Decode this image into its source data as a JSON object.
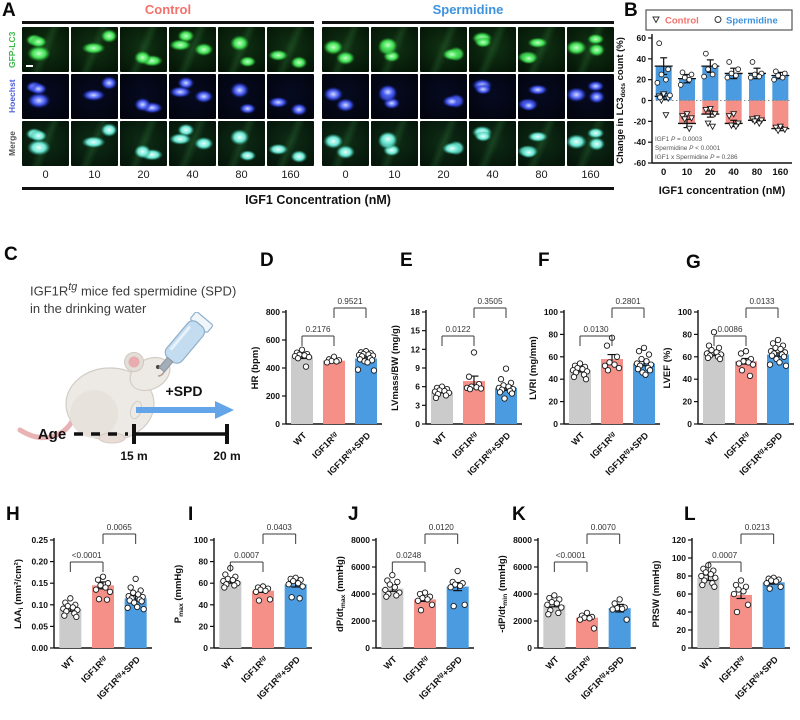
{
  "panel_a": {
    "letter": "A",
    "groups": [
      {
        "label": "Control",
        "color": "#F2726B"
      },
      {
        "label": "Spermidine",
        "color": "#3E93DE"
      }
    ],
    "rows": [
      {
        "label": "GFP-LC3",
        "color": "#3CB54A"
      },
      {
        "label": "Hoechst",
        "color": "#4C5FD6"
      },
      {
        "label": "Merge",
        "color": "#555555"
      }
    ],
    "concentrations": [
      "0",
      "10",
      "20",
      "40",
      "80",
      "160"
    ],
    "xlabel": "IGF1 Concentration (nM)"
  },
  "panel_c": {
    "letter": "C",
    "description_lines": [
      "IGF1R^{tg} mice fed spermidine (SPD)",
      "in the drinking water"
    ],
    "age_label": "Age",
    "arrow_label": "+SPD",
    "t_start": "15 m",
    "t_end": "20 m"
  },
  "chart_data": [
    {
      "panel": "B",
      "type": "grouped-bar",
      "ylabel": "Change in LC3_{dots} count (%)",
      "xlabel": "IGF1 concentration (nM)",
      "ylim": [
        -60,
        60
      ],
      "yticks": [
        -60,
        -40,
        -20,
        0,
        20,
        40,
        60
      ],
      "ytick_labels": [
        "-60",
        "-40",
        "-20",
        "0",
        "20",
        "40",
        "60"
      ],
      "categories": [
        "0",
        "10",
        "20",
        "40",
        "80",
        "160"
      ],
      "legend": [
        {
          "label": "Control",
          "marker": "triangle-down",
          "text_color": "#F2726B"
        },
        {
          "label": "Spermidine",
          "marker": "circle",
          "text_color": "#3E93DE"
        }
      ],
      "series": [
        {
          "name": "Control",
          "marker": "triangle-down",
          "color": "#F59089",
          "values": [
            4,
            -22,
            -13,
            -22,
            -19,
            -27
          ],
          "errors": [
            3,
            4,
            3,
            3,
            2,
            2
          ],
          "points": [
            [
              6,
              4,
              2,
              0,
              -14
            ],
            [
              -13,
              -15,
              -17,
              -18,
              -27
            ],
            [
              -8,
              -9,
              -13,
              -22,
              -25
            ],
            [
              -13,
              -15,
              -22,
              -24,
              -25
            ],
            [
              -17,
              -18,
              -19,
              -20,
              -22
            ],
            [
              -25,
              -26,
              -28,
              -29
            ]
          ]
        },
        {
          "name": "Spermidine",
          "marker": "circle",
          "color": "#4A9BE0",
          "values": [
            33,
            21,
            33,
            26,
            26,
            24
          ],
          "errors": [
            8,
            4,
            6,
            5,
            5,
            3
          ],
          "points": [
            [
              55,
              30,
              25,
              20,
              17,
              5,
              3
            ],
            [
              27,
              25,
              22,
              20,
              15
            ],
            [
              45,
              33,
              30,
              25,
              23
            ],
            [
              37,
              30,
              26,
              24,
              22
            ],
            [
              37,
              26,
              25,
              23,
              22
            ],
            [
              28,
              26,
              24,
              22,
              20
            ]
          ]
        }
      ],
      "stats": [
        "IGF1 *P* = 0.0003",
        "Spermidine *P* < 0.0001",
        "IGF1 x Spermidine *P* = 0.286"
      ]
    },
    {
      "panel": "D",
      "type": "bar",
      "ylabel": "HR (bpm)",
      "ylim": [
        0,
        800
      ],
      "yticks": [
        0,
        200,
        400,
        600,
        800
      ],
      "ytick_labels": [
        "0",
        "200",
        "400",
        "600",
        "800"
      ],
      "categories": [
        "WT",
        "IGF1R^{tg}",
        "IGF1R^{tg}+SPD"
      ],
      "bar_colors": [
        "#CBCBCB",
        "#F59089",
        "#4A9BE0"
      ],
      "values": [
        482,
        452,
        468
      ],
      "errors": [
        14,
        9,
        10
      ],
      "points": [
        [
          530,
          510,
          500,
          495,
          490,
          485,
          478,
          470,
          410
        ],
        [
          480,
          462,
          455,
          450,
          447,
          440
        ],
        [
          520,
          512,
          505,
          500,
          496,
          492,
          488,
          484,
          470,
          462,
          455,
          448,
          440,
          388,
          382
        ]
      ],
      "comparisons": [
        {
          "a": 0,
          "b": 1,
          "p": "0.2176"
        },
        {
          "a": 1,
          "b": 2,
          "p": "0.9521"
        }
      ]
    },
    {
      "panel": "E",
      "type": "bar",
      "ylabel": "LVmass/BW (mg/g)",
      "ylim": [
        0,
        18
      ],
      "yticks": [
        0,
        3,
        6,
        9,
        12,
        15,
        18
      ],
      "ytick_labels": [
        "0",
        "3",
        "6",
        "9",
        "12",
        "15",
        "18"
      ],
      "categories": [
        "WT",
        "IGF1R^{tg}",
        "IGF1R^{tg}+SPD"
      ],
      "bar_colors": [
        "#CBCBCB",
        "#F59089",
        "#4A9BE0"
      ],
      "values": [
        5.2,
        6.9,
        5.8
      ],
      "errors": [
        0.2,
        0.8,
        0.4
      ],
      "points": [
        [
          6.0,
          5.8,
          5.6,
          5.4,
          5.3,
          5.2,
          5.0,
          4.8,
          4.6,
          4.2
        ],
        [
          11.5,
          7.6,
          6.4,
          6.0,
          5.9,
          5.8,
          5.7,
          5.6
        ],
        [
          8.9,
          7.2,
          6.6,
          6.2,
          6.0,
          5.8,
          5.6,
          5.5,
          5.3,
          5.1,
          4.9,
          4.1
        ]
      ],
      "comparisons": [
        {
          "a": 0,
          "b": 1,
          "p": "0.0122"
        },
        {
          "a": 1,
          "b": 2,
          "p": "0.3505"
        }
      ]
    },
    {
      "panel": "F",
      "type": "bar",
      "ylabel": "LVRI (mg/mm)",
      "ylim": [
        0,
        100
      ],
      "yticks": [
        0,
        20,
        40,
        60,
        80,
        100
      ],
      "ytick_labels": [
        "0",
        "20",
        "40",
        "60",
        "80",
        "100"
      ],
      "categories": [
        "WT",
        "IGF1R^{tg}",
        "IGF1R^{tg}+SPD"
      ],
      "bar_colors": [
        "#CBCBCB",
        "#F59089",
        "#4A9BE0"
      ],
      "values": [
        48,
        58,
        54
      ],
      "errors": [
        1.5,
        4,
        2
      ],
      "points": [
        [
          54,
          52,
          51,
          50,
          49,
          48,
          47,
          46,
          44,
          42,
          40
        ],
        [
          77,
          70,
          60,
          55,
          53,
          52,
          50,
          48
        ],
        [
          68,
          65,
          62,
          58,
          56,
          54,
          53,
          52,
          50,
          49,
          48,
          46,
          44
        ]
      ],
      "comparisons": [
        {
          "a": 0,
          "b": 1,
          "p": "0.0130"
        },
        {
          "a": 1,
          "b": 2,
          "p": "0.2801"
        }
      ]
    },
    {
      "panel": "G",
      "type": "bar",
      "ylabel": "LVEF (%)",
      "ylim": [
        0,
        100
      ],
      "yticks": [
        0,
        20,
        40,
        60,
        80,
        100
      ],
      "ytick_labels": [
        "0",
        "20",
        "40",
        "60",
        "80",
        "100"
      ],
      "categories": [
        "WT",
        "IGF1R^{tg}",
        "IGF1R^{tg}+SPD"
      ],
      "bar_colors": [
        "#CBCBCB",
        "#F59089",
        "#4A9BE0"
      ],
      "values": [
        63,
        56,
        62
      ],
      "errors": [
        2,
        2.5,
        1.5
      ],
      "points": [
        [
          82,
          70,
          68,
          66,
          64,
          63,
          62,
          61,
          60,
          59,
          58
        ],
        [
          65,
          63,
          58,
          56,
          55,
          54,
          53,
          48,
          43
        ],
        [
          75,
          72,
          70,
          68,
          67,
          65,
          64,
          63,
          62,
          61,
          60,
          58,
          55,
          53,
          52
        ]
      ],
      "comparisons": [
        {
          "a": 0,
          "b": 1,
          "p": "0.0086"
        },
        {
          "a": 1,
          "b": 2,
          "p": "0.0133"
        }
      ]
    },
    {
      "panel": "H",
      "type": "bar",
      "ylabel": "LAA_{i} (mm²/cm²)",
      "ylim": [
        0,
        0.25
      ],
      "yticks": [
        0,
        0.05,
        0.1,
        0.15,
        0.2,
        0.25
      ],
      "ytick_labels": [
        "0.00",
        "0.05",
        "0.10",
        "0.15",
        "0.20",
        "0.25"
      ],
      "categories": [
        "WT",
        "IGF1R^{tg}",
        "IGF1R^{tg}+SPD"
      ],
      "bar_colors": [
        "#CBCBCB",
        "#F59089",
        "#4A9BE0"
      ],
      "values": [
        0.09,
        0.145,
        0.115
      ],
      "errors": [
        0.005,
        0.008,
        0.006
      ],
      "points": [
        [
          0.115,
          0.105,
          0.1,
          0.097,
          0.094,
          0.091,
          0.088,
          0.085,
          0.08,
          0.075,
          0.072
        ],
        [
          0.165,
          0.158,
          0.15,
          0.145,
          0.14,
          0.135,
          0.13,
          0.113,
          0.112
        ],
        [
          0.16,
          0.14,
          0.133,
          0.128,
          0.124,
          0.12,
          0.118,
          0.115,
          0.112,
          0.11,
          0.108,
          0.105,
          0.095,
          0.093,
          0.09
        ]
      ],
      "comparisons": [
        {
          "a": 0,
          "b": 1,
          "p": "<0.0001"
        },
        {
          "a": 1,
          "b": 2,
          "p": "0.0065"
        }
      ]
    },
    {
      "panel": "I",
      "type": "bar",
      "ylabel": "P_{max} (mmHg)",
      "ylim": [
        0,
        100
      ],
      "yticks": [
        0,
        20,
        40,
        60,
        80,
        100
      ],
      "ytick_labels": [
        "0",
        "20",
        "40",
        "60",
        "80",
        "100"
      ],
      "categories": [
        "WT",
        "IGF1R^{tg}",
        "IGF1R^{tg}+SPD"
      ],
      "bar_colors": [
        "#CBCBCB",
        "#F59089",
        "#4A9BE0"
      ],
      "values": [
        62,
        53,
        59
      ],
      "errors": [
        2,
        1.5,
        2.5
      ],
      "points": [
        [
          74,
          68,
          66,
          64,
          63,
          62,
          60,
          59,
          58,
          56
        ],
        [
          57,
          56,
          55,
          54,
          53,
          52,
          45,
          44
        ],
        [
          65,
          64,
          63,
          62,
          60,
          59,
          57,
          47,
          46
        ]
      ],
      "comparisons": [
        {
          "a": 0,
          "b": 1,
          "p": "0.0007"
        },
        {
          "a": 1,
          "b": 2,
          "p": "0.0403"
        }
      ]
    },
    {
      "panel": "J",
      "type": "bar",
      "ylabel": "dP/dt_{max} (mmHg)",
      "ylim": [
        0,
        8000
      ],
      "yticks": [
        0,
        2000,
        4000,
        6000,
        8000
      ],
      "ytick_labels": [
        "0",
        "2000",
        "4000",
        "6000",
        "8000"
      ],
      "categories": [
        "WT",
        "IGF1R^{tg}",
        "IGF1R^{tg}+SPD"
      ],
      "bar_colors": [
        "#CBCBCB",
        "#F59089",
        "#4A9BE0"
      ],
      "values": [
        4400,
        3600,
        4550
      ],
      "errors": [
        200,
        150,
        300
      ],
      "points": [
        [
          5400,
          5000,
          4900,
          4700,
          4500,
          4300,
          4100,
          4000,
          3900,
          3800
        ],
        [
          4100,
          4000,
          3800,
          3700,
          3600,
          3500,
          3200,
          2800
        ],
        [
          5700,
          4900,
          4800,
          4700,
          4600,
          4500,
          3200,
          3100
        ]
      ],
      "comparisons": [
        {
          "a": 0,
          "b": 1,
          "p": "0.0248"
        },
        {
          "a": 1,
          "b": 2,
          "p": "0.0120"
        }
      ]
    },
    {
      "panel": "K",
      "type": "bar",
      "ylabel": "-dP/dt_{min} (mmHg)",
      "ylim": [
        0,
        8000
      ],
      "yticks": [
        0,
        2000,
        4000,
        6000,
        8000
      ],
      "ytick_labels": [
        "0",
        "2000",
        "4000",
        "6000",
        "8000"
      ],
      "categories": [
        "WT",
        "IGF1R^{tg}",
        "IGF1R^{tg}+SPD"
      ],
      "bar_colors": [
        "#CBCBCB",
        "#F59089",
        "#4A9BE0"
      ],
      "values": [
        3200,
        2250,
        2950
      ],
      "errors": [
        150,
        120,
        280
      ],
      "points": [
        [
          3900,
          3700,
          3600,
          3400,
          3300,
          3200,
          3000,
          2800,
          2600,
          2500
        ],
        [
          2600,
          2400,
          2300,
          2250,
          2200,
          2100,
          1450
        ],
        [
          3600,
          3300,
          3000,
          2950,
          2900,
          2850,
          2100
        ]
      ],
      "comparisons": [
        {
          "a": 0,
          "b": 1,
          "p": "<0.0001"
        },
        {
          "a": 1,
          "b": 2,
          "p": "0.0070"
        }
      ]
    },
    {
      "panel": "L",
      "type": "bar",
      "ylabel": "PRSW (mmHg)",
      "ylim": [
        0,
        120
      ],
      "yticks": [
        0,
        20,
        40,
        60,
        80,
        100,
        120
      ],
      "ytick_labels": [
        "0",
        "20",
        "40",
        "60",
        "80",
        "100",
        "120"
      ],
      "categories": [
        "WT",
        "IGF1R^{tg}",
        "IGF1R^{tg}+SPD"
      ],
      "bar_colors": [
        "#CBCBCB",
        "#F59089",
        "#4A9BE0"
      ],
      "values": [
        78,
        59,
        73
      ],
      "errors": [
        3,
        4,
        2
      ],
      "points": [
        [
          92,
          88,
          86,
          84,
          82,
          80,
          78,
          75,
          72,
          70,
          68
        ],
        [
          75,
          70,
          68,
          65,
          63,
          60,
          48,
          40
        ],
        [
          78,
          77,
          76,
          75,
          74,
          72,
          68,
          66
        ]
      ],
      "comparisons": [
        {
          "a": 0,
          "b": 1,
          "p": "0.0007"
        },
        {
          "a": 1,
          "b": 2,
          "p": "0.0213"
        }
      ]
    }
  ]
}
